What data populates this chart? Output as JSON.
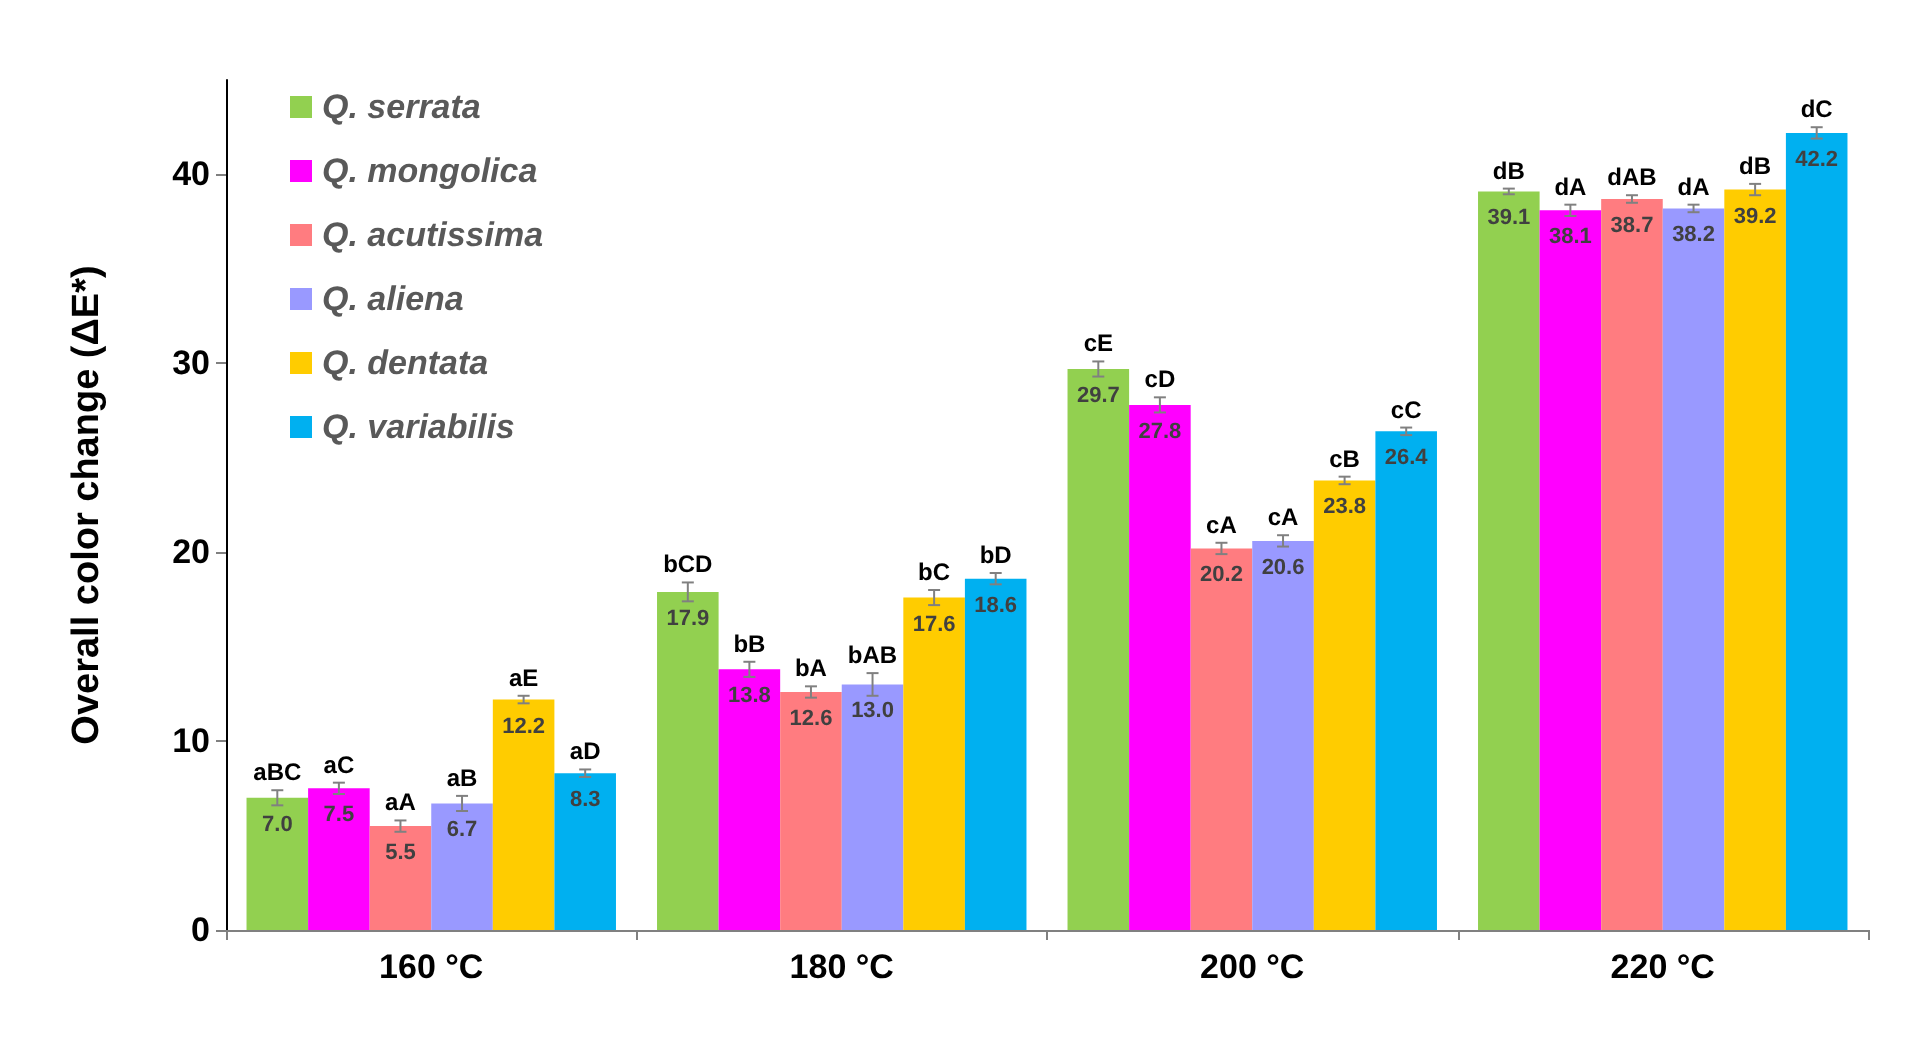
{
  "chart_data": {
    "type": "bar",
    "ylabel": "Overall color change (ΔE*)",
    "categories": [
      "160 °C",
      "180 °C",
      "200 °C",
      "220 °C"
    ],
    "series": [
      {
        "name": "Q. serrata",
        "color": "#92d050",
        "values": [
          7.0,
          17.9,
          29.7,
          39.1
        ],
        "value_labels": [
          "7.0",
          "17.9",
          "29.7",
          "39.1"
        ],
        "errors": [
          0.4,
          0.5,
          0.4,
          0.15
        ]
      },
      {
        "name": "Q. mongolica",
        "color": "#ff00ff",
        "values": [
          7.5,
          13.8,
          27.8,
          38.1
        ],
        "value_labels": [
          "7.5",
          "13.8",
          "27.8",
          "38.1"
        ],
        "errors": [
          0.3,
          0.4,
          0.4,
          0.3
        ]
      },
      {
        "name": "Q. acutissima",
        "color": "#ff7c80",
        "values": [
          5.5,
          12.6,
          20.2,
          38.7
        ],
        "value_labels": [
          "5.5",
          "12.6",
          "20.2",
          "38.7"
        ],
        "errors": [
          0.3,
          0.3,
          0.3,
          0.2
        ]
      },
      {
        "name": "Q. aliena",
        "color": "#9999ff",
        "values": [
          6.7,
          13.0,
          20.6,
          38.2
        ],
        "value_labels": [
          "6.7",
          "13.0",
          "20.6",
          "38.2"
        ],
        "errors": [
          0.4,
          0.6,
          0.3,
          0.2
        ]
      },
      {
        "name": "Q. dentata",
        "color": "#ffcc00",
        "values": [
          12.2,
          17.6,
          23.8,
          39.2
        ],
        "value_labels": [
          "12.2",
          "17.6",
          "23.8",
          "39.2"
        ],
        "errors": [
          0.2,
          0.4,
          0.2,
          0.3
        ]
      },
      {
        "name": "Q. variabilis",
        "color": "#00b0f0",
        "values": [
          8.3,
          18.6,
          26.4,
          42.2
        ],
        "value_labels": [
          "8.3",
          "18.6",
          "26.4",
          "42.2"
        ],
        "errors": [
          0.2,
          0.3,
          0.2,
          0.3
        ]
      }
    ],
    "ylim": [
      0,
      45
    ],
    "yticks": [
      0,
      10,
      20,
      30,
      40
    ],
    "grid": false,
    "legend": "top left",
    "annotations": [
      "aBC",
      "aC",
      "aA",
      "aB",
      "aE",
      "aD",
      "bCD",
      "bB",
      "bA",
      "bAB",
      "bC",
      "bD",
      "cE",
      "cD",
      "cA",
      "cA",
      "cB",
      "cC",
      "dB",
      "dA",
      "dAB",
      "dA",
      "dB",
      "dC"
    ]
  }
}
